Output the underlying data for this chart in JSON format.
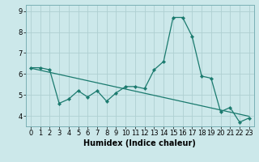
{
  "title": "",
  "xlabel": "Humidex (Indice chaleur)",
  "bg_color": "#cce8ea",
  "grid_color": "#afd0d2",
  "line_color": "#1a7a6e",
  "x_values": [
    0,
    1,
    2,
    3,
    4,
    5,
    6,
    7,
    8,
    9,
    10,
    11,
    12,
    13,
    14,
    15,
    16,
    17,
    18,
    19,
    20,
    21,
    22,
    23
  ],
  "y_data": [
    6.3,
    6.3,
    6.2,
    4.6,
    4.8,
    5.2,
    4.9,
    5.2,
    4.7,
    5.1,
    5.4,
    5.4,
    5.3,
    6.2,
    6.6,
    8.7,
    8.7,
    7.8,
    5.9,
    5.8,
    4.2,
    4.4,
    3.7,
    3.9
  ],
  "y_trend": [
    6.28,
    6.18,
    6.08,
    5.98,
    5.88,
    5.78,
    5.68,
    5.58,
    5.48,
    5.38,
    5.28,
    5.18,
    5.08,
    4.98,
    4.88,
    4.78,
    4.68,
    4.58,
    4.48,
    4.38,
    4.28,
    4.18,
    4.08,
    3.98
  ],
  "ylim": [
    3.5,
    9.3
  ],
  "yticks": [
    4,
    5,
    6,
    7,
    8,
    9
  ],
  "xticks": [
    0,
    1,
    2,
    3,
    4,
    5,
    6,
    7,
    8,
    9,
    10,
    11,
    12,
    13,
    14,
    15,
    16,
    17,
    18,
    19,
    20,
    21,
    22,
    23
  ],
  "tick_fontsize": 6,
  "xlabel_fontsize": 7,
  "spine_color": "#7ab0b5"
}
